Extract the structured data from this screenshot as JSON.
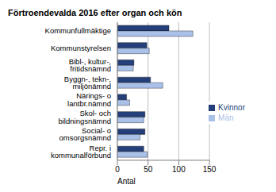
{
  "chart_data": {
    "type": "bar",
    "orientation": "horizontal",
    "title": "Förtroendevalda 2016 efter organ och kön",
    "x_label": "Antal",
    "categories": [
      "Kommunfullmäktige",
      "Kommunstyrelsen",
      "Bibl-, kultur-, fritidsnämnd",
      "Byggn-, tekn-, miljönämnd",
      "Närings- o lantbr.nämnd",
      "Skol- och bildningsnämnd",
      "Social- o omsorgsnämnd",
      "Repr. i kommunalförbund"
    ],
    "series": [
      {
        "name": "Kvinnor",
        "color": "#243f7a",
        "values": [
          84,
          48,
          27,
          54,
          15,
          45,
          45,
          43
        ]
      },
      {
        "name": "Män",
        "color": "#a9c0e8",
        "values": [
          123,
          52,
          26,
          74,
          20,
          43,
          37,
          49
        ]
      }
    ],
    "xlim": [
      0,
      150
    ],
    "xticks": [
      0,
      50,
      100,
      150
    ],
    "grid": true,
    "legend": "right"
  }
}
